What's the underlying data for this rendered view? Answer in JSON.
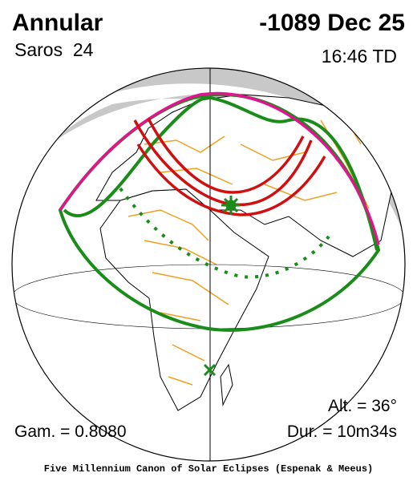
{
  "header": {
    "title": "Annular",
    "date": "-1089 Dec 25",
    "saros": "Saros  24",
    "time": "16:46 TD"
  },
  "stats": {
    "altitude": "Alt. = 36°",
    "gamma": "Gam. = 0.8080",
    "duration": "Dur. = 10m34s"
  },
  "footer": "Five Millennium Canon of Solar Eclipses (Espenak & Meeus)"
}
